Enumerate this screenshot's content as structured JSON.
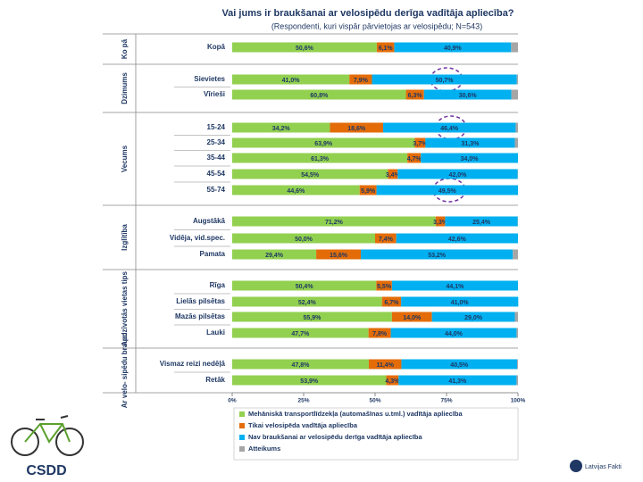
{
  "chart_data": {
    "type": "stacked-bar-horizontal",
    "title": "Vai jums ir braukšanai ar velosipēdu derīga vadītāja apliecība?",
    "subtitle": "(Respondenti, kuri vispār pārvietojas ar velosipēdu; N=543)",
    "groups": [
      "Ko pā",
      "Dzimums",
      "Vecums",
      "Izglītība",
      "Apdzīvotās vietas tips",
      "Ar velo- sipēdu brauc:"
    ],
    "categories": [
      "Kopā",
      "Sievietes",
      "Vīrieši",
      "15-24",
      "25-34",
      "35-44",
      "45-54",
      "55-74",
      "Augstākā",
      "Vidēja, vid.spec.",
      "Pamata",
      "Rīga",
      "Lielās pilsētas",
      "Mazās pilsētas",
      "Lauki",
      "Vismaz reizi nedēļā",
      "Retāk"
    ],
    "series": [
      {
        "name": "Mehāniskā transportlīdzekļa (automašīnas u.tml.) vadītāja apliecība",
        "color": "#92d050",
        "values": [
          50.6,
          41.0,
          60.8,
          34.2,
          63.9,
          61.3,
          54.5,
          44.6,
          71.2,
          50.0,
          29.4,
          50.4,
          52.4,
          55.9,
          47.7,
          47.8,
          53.9
        ],
        "value_labels": [
          "50,6%",
          "41,0%",
          "60,8%",
          "34,2%",
          "63,9%",
          "61,3%",
          "54,5%",
          "44,6%",
          "71,2%",
          "50,0%",
          "29,4%",
          "50,4%",
          "52,4%",
          "55,9%",
          "47,7%",
          "47,8%",
          "53,9%"
        ]
      },
      {
        "name": "Tikai velosipēda vadītāja apliecība",
        "color": "#e36c09",
        "values": [
          6.1,
          7.9,
          6.3,
          18.6,
          3.7,
          4.7,
          3.4,
          5.9,
          3.3,
          7.4,
          15.6,
          5.5,
          6.7,
          14.0,
          7.8,
          11.4,
          4.3
        ],
        "value_labels": [
          "6,1%",
          "7,9%",
          "6,3%",
          "18,6%",
          "3,7%",
          "4,7%",
          "3,4%",
          "5,9%",
          "3,3%",
          "7,4%",
          "15,6%",
          "5,5%",
          "6,7%",
          "14,0%",
          "7,8%",
          "11,4%",
          "4,3%"
        ]
      },
      {
        "name": "Nav braukšanai ar velosipēdu derīga vadītāja apliecība",
        "color": "#00b0f0",
        "values": [
          40.9,
          50.7,
          30.6,
          46.4,
          31.3,
          34.0,
          42.0,
          49.5,
          25.4,
          42.6,
          53.2,
          44.1,
          41.0,
          29.0,
          44.0,
          40.5,
          41.3
        ],
        "value_labels": [
          "40,9%",
          "50,7%",
          "30,6%",
          "46,4%",
          "31,3%",
          "34,0%",
          "42,0%",
          "49,5%",
          "25,4%",
          "42,6%",
          "53,2%",
          "44,1%",
          "41,0%",
          "29,0%",
          "44,0%",
          "40,5%",
          "41,3%"
        ]
      },
      {
        "name": "Atteikums",
        "color": "#a6a6a6",
        "values": [
          2.4,
          0.4,
          2.3,
          0.8,
          1.1,
          0,
          0.1,
          0,
          0.1,
          0,
          1.8,
          0,
          0,
          1.1,
          0.5,
          0.3,
          0.5
        ]
      }
    ],
    "xlim": [
      0,
      100
    ],
    "xticks": [
      {
        "value": 0,
        "label": "0%"
      },
      {
        "value": 25,
        "label": "25%"
      },
      {
        "value": 50,
        "label": "50%"
      },
      {
        "value": 75,
        "label": "75%"
      },
      {
        "value": 100,
        "label": "100%"
      }
    ],
    "legend": "bottom",
    "logos": [
      "CSDD",
      "Latvijas Fakti"
    ]
  }
}
